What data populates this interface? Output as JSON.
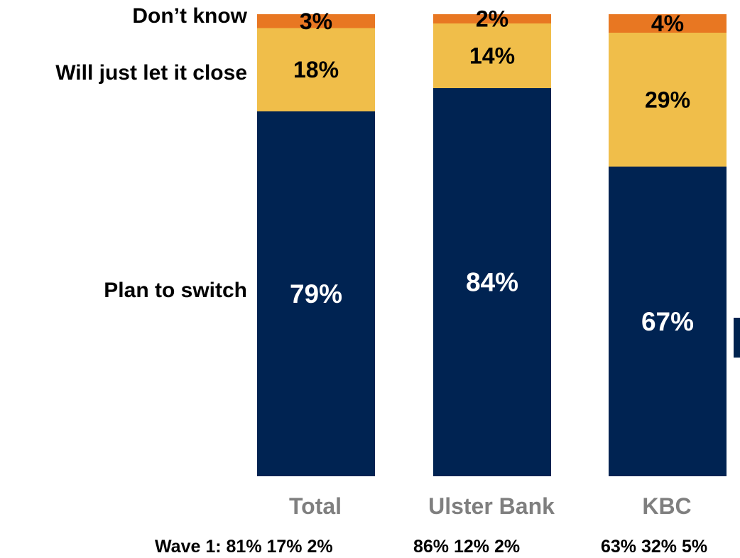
{
  "chart_data": {
    "type": "bar",
    "stacked": true,
    "percent_scale": true,
    "categories": [
      "Total",
      "Ulster Bank",
      "KBC"
    ],
    "series": [
      {
        "name": "Plan to switch",
        "values": [
          79,
          84,
          67
        ],
        "color": "#002352"
      },
      {
        "name": "Will just let it close",
        "values": [
          18,
          14,
          29
        ],
        "color": "#f0be4a"
      },
      {
        "name": "Don’t know",
        "values": [
          3,
          2,
          4
        ],
        "color": "#e87722"
      }
    ],
    "data_labels": [
      [
        "79%",
        "84%",
        "67%"
      ],
      [
        "18%",
        "14%",
        "29%"
      ],
      [
        "3%",
        "2%",
        "4%"
      ]
    ],
    "ylim": [
      0,
      100
    ],
    "grid": false,
    "legend": "left, aligned with segments",
    "wave1": {
      "prefix": "Wave 1:",
      "values": [
        "81% 17% 2%",
        "86% 12% 2%",
        "63% 32% 5%"
      ]
    }
  }
}
